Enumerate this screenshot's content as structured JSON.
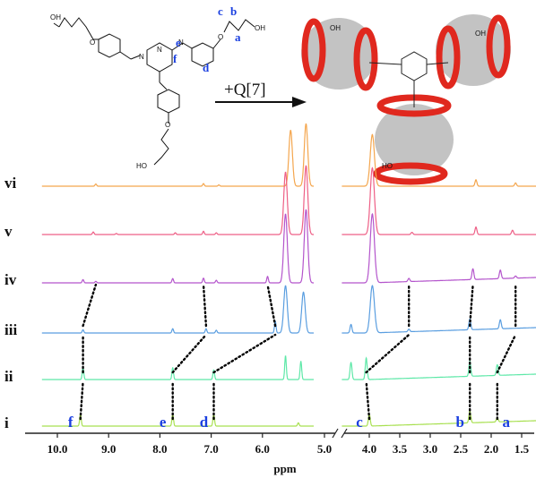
{
  "chart_data": {
    "type": "line",
    "xlabel": "ppm",
    "xlim": [
      10.35,
      1.25
    ],
    "x_reversed": true,
    "axis_break_at": 5.0,
    "ticks": [
      {
        "label": "10.0",
        "value": 10.0
      },
      {
        "label": "9.0",
        "value": 9.0
      },
      {
        "label": "8.0",
        "value": 8.0
      },
      {
        "label": "7.0",
        "value": 7.0
      },
      {
        "label": "6.0",
        "value": 6.0
      },
      {
        "label": "5.0",
        "value": 5.0
      },
      {
        "label": "4.0",
        "value": 4.0
      },
      {
        "label": "3.5",
        "value": 3.5
      },
      {
        "label": "3.0",
        "value": 3.0
      },
      {
        "label": "2.5",
        "value": 2.5
      },
      {
        "label": "2.0",
        "value": 2.0
      },
      {
        "label": "1.5",
        "value": 1.5
      }
    ],
    "series": [
      {
        "name": "vi",
        "color": "#f4a64e",
        "peaks": [
          {
            "x": 9.25,
            "h": 0.1
          },
          {
            "x": 7.15,
            "h": 0.12
          },
          {
            "x": 6.85,
            "h": 0.06
          },
          {
            "x": 5.45,
            "h": 2.6
          },
          {
            "x": 5.15,
            "h": 2.9
          },
          {
            "x": 3.95,
            "h": 2.4
          },
          {
            "x": 2.25,
            "h": 0.3
          },
          {
            "x": 1.6,
            "h": 0.15
          }
        ]
      },
      {
        "name": "v",
        "color": "#ee5f86",
        "peaks": [
          {
            "x": 9.3,
            "h": 0.12
          },
          {
            "x": 8.85,
            "h": 0.05
          },
          {
            "x": 7.7,
            "h": 0.08
          },
          {
            "x": 7.15,
            "h": 0.15
          },
          {
            "x": 6.9,
            "h": 0.08
          },
          {
            "x": 5.55,
            "h": 2.9
          },
          {
            "x": 5.15,
            "h": 3.2
          },
          {
            "x": 3.95,
            "h": 3.1
          },
          {
            "x": 3.3,
            "h": 0.1
          },
          {
            "x": 2.25,
            "h": 0.35
          },
          {
            "x": 1.65,
            "h": 0.2
          }
        ]
      },
      {
        "name": "iv",
        "color": "#b455cc",
        "peaks": [
          {
            "x": 9.5,
            "h": 0.15
          },
          {
            "x": 9.25,
            "h": 0.07
          },
          {
            "x": 7.75,
            "h": 0.2
          },
          {
            "x": 7.15,
            "h": 0.22
          },
          {
            "x": 6.9,
            "h": 0.12
          },
          {
            "x": 5.9,
            "h": 0.3
          },
          {
            "x": 5.55,
            "h": 3.2
          },
          {
            "x": 5.15,
            "h": 3.4
          },
          {
            "x": 3.95,
            "h": 3.2
          },
          {
            "x": 3.35,
            "h": 0.15
          },
          {
            "x": 2.3,
            "h": 0.5
          },
          {
            "x": 1.85,
            "h": 0.4
          },
          {
            "x": 1.6,
            "h": 0.1
          }
        ]
      },
      {
        "name": "iii",
        "color": "#5a9ee0",
        "peaks": [
          {
            "x": 9.5,
            "h": 0.15
          },
          {
            "x": 7.75,
            "h": 0.2
          },
          {
            "x": 7.1,
            "h": 0.2
          },
          {
            "x": 6.9,
            "h": 0.13
          },
          {
            "x": 5.75,
            "h": 0.55
          },
          {
            "x": 5.55,
            "h": 2.2
          },
          {
            "x": 5.2,
            "h": 1.9
          },
          {
            "x": 4.3,
            "h": 0.4
          },
          {
            "x": 3.95,
            "h": 2.2
          },
          {
            "x": 3.35,
            "h": 0.12
          },
          {
            "x": 2.35,
            "h": 0.5
          },
          {
            "x": 1.85,
            "h": 0.42
          }
        ]
      },
      {
        "name": "ii",
        "color": "#5ee8a8",
        "peaks": [
          {
            "x": 9.5,
            "h": 0.55
          },
          {
            "x": 7.75,
            "h": 0.55
          },
          {
            "x": 6.95,
            "h": 0.45
          },
          {
            "x": 5.55,
            "h": 1.1
          },
          {
            "x": 5.25,
            "h": 0.85
          },
          {
            "x": 4.3,
            "h": 0.8
          },
          {
            "x": 4.05,
            "h": 1.0
          },
          {
            "x": 2.35,
            "h": 0.7
          },
          {
            "x": 1.9,
            "h": 0.5
          }
        ]
      },
      {
        "name": "i",
        "color": "#a8e050",
        "peaks": [
          {
            "x": 9.55,
            "h": 0.55
          },
          {
            "x": 7.75,
            "h": 0.55
          },
          {
            "x": 6.95,
            "h": 0.55
          },
          {
            "x": 5.3,
            "h": 0.15
          },
          {
            "x": 4.0,
            "h": 0.55
          },
          {
            "x": 2.35,
            "h": 0.55
          },
          {
            "x": 1.9,
            "h": 0.2
          }
        ]
      }
    ],
    "peak_labels": [
      {
        "label": "f",
        "x": 9.55
      },
      {
        "label": "e",
        "x": 7.75
      },
      {
        "label": "d",
        "x": 6.95
      },
      {
        "label": "c",
        "x": 4.0
      },
      {
        "label": "b",
        "x": 2.35
      },
      {
        "label": "a",
        "x": 1.9
      }
    ],
    "shift_links": [
      [
        9.55,
        9.5,
        9.5,
        9.25
      ],
      [
        7.75,
        7.75,
        7.1,
        7.15
      ],
      [
        6.95,
        6.95,
        5.75,
        5.9
      ],
      [
        4.0,
        4.05,
        3.35,
        3.35
      ],
      [
        2.35,
        2.35,
        2.35,
        2.3
      ],
      [
        1.9,
        1.9,
        1.6,
        1.6
      ]
    ]
  },
  "scheme": {
    "reaction_label": "+Q[7]",
    "structure_labels": {
      "cooh": "OH",
      "o": "O",
      "n": "N",
      "ho": "HO"
    },
    "site_labels": [
      "a",
      "b",
      "c",
      "d",
      "e",
      "f"
    ]
  },
  "colors": {
    "label_blue": "#1a3fe0",
    "axis": "#222222",
    "cage_gray": "#b9b9b9",
    "cage_red": "#e0281e",
    "dots": "#000000"
  }
}
